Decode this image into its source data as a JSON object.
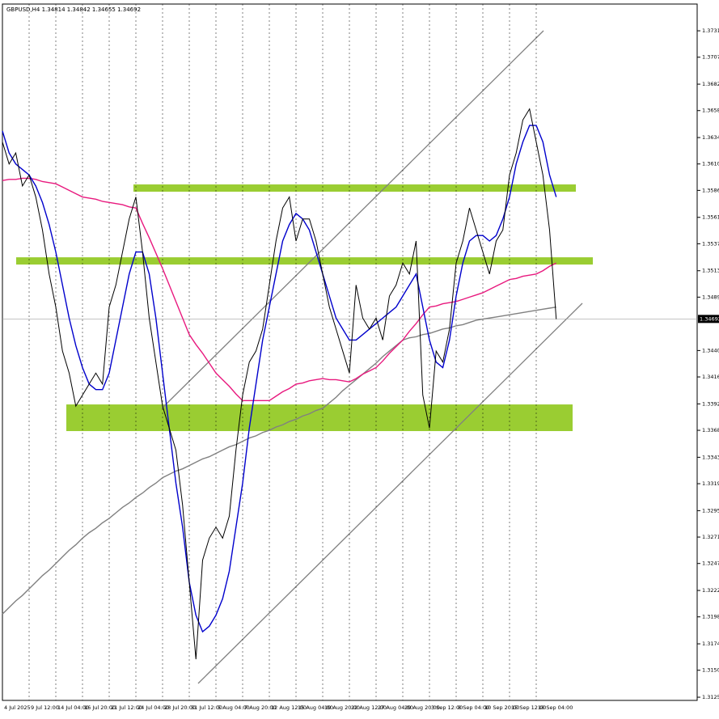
{
  "chart_data": {
    "type": "line",
    "title": "GBPUSD,H4  1.34814 1.34842 1.34655 1.34692",
    "last_price": 1.34692,
    "categories": [
      "4 Jul 2025",
      null,
      null,
      null,
      "9 Jul 12:00",
      null,
      null,
      null,
      "14 Jul 04:00",
      null,
      null,
      null,
      "16 Jul 20:00",
      null,
      null,
      null,
      "21 Jul 12:00",
      null,
      null,
      null,
      "24 Jul 04:00",
      null,
      null,
      null,
      "28 Jul 20:00",
      null,
      null,
      null,
      "31 Jul 12:00",
      null,
      null,
      null,
      "5 Aug 04:00",
      null,
      null,
      null,
      "7 Aug 20:00",
      null,
      null,
      null,
      "12 Aug 12:00",
      null,
      null,
      null,
      "15 Aug 04:00",
      null,
      null,
      null,
      "19 Aug 20:00",
      null,
      null,
      null,
      "22 Aug 12:00",
      null,
      null,
      null,
      "27 Aug 04:00",
      null,
      null,
      null,
      "29 Aug 20:00",
      null,
      null,
      null,
      "3 Sep 12:00",
      null,
      null,
      null,
      "8 Sep 04:00",
      null,
      null,
      null,
      "10 Sep 20:00",
      null,
      null,
      null,
      "15 Sep 12:00",
      null,
      null,
      null,
      "18 Sep 04:00",
      null,
      null,
      null
    ],
    "series": [
      {
        "color": "#000000",
        "values": [
          1.363,
          1.361,
          1.362,
          1.359,
          1.36,
          1.358,
          1.355,
          1.351,
          1.348,
          1.344,
          1.342,
          1.339,
          1.34,
          1.341,
          1.342,
          1.341,
          1.348,
          1.35,
          1.353,
          1.356,
          1.358,
          1.353,
          1.347,
          1.343,
          1.339,
          1.337,
          1.335,
          1.33,
          1.323,
          1.316,
          1.325,
          1.327,
          1.328,
          1.327,
          1.329,
          1.335,
          1.34,
          1.343,
          1.344,
          1.346,
          1.35,
          1.354,
          1.357,
          1.358,
          1.354,
          1.356,
          1.356,
          1.354,
          1.351,
          1.348,
          1.346,
          1.344,
          1.342,
          1.35,
          1.347,
          1.346,
          1.347,
          1.345,
          1.349,
          1.35,
          1.352,
          1.351,
          1.354,
          1.34,
          1.337,
          1.344,
          1.343,
          1.346,
          1.352,
          1.354,
          1.357,
          1.355,
          1.353,
          1.351,
          1.354,
          1.355,
          1.36,
          1.362,
          1.365,
          1.366,
          1.363,
          1.36,
          1.355,
          1.3469
        ]
      },
      {
        "color": "#0000cc",
        "values": [
          1.364,
          1.362,
          1.361,
          1.3605,
          1.36,
          1.359,
          1.3575,
          1.3555,
          1.353,
          1.35,
          1.347,
          1.3445,
          1.3425,
          1.341,
          1.3405,
          1.3405,
          1.342,
          1.345,
          1.348,
          1.351,
          1.353,
          1.353,
          1.351,
          1.347,
          1.342,
          1.337,
          1.332,
          1.328,
          1.323,
          1.32,
          1.3185,
          1.319,
          1.32,
          1.3215,
          1.324,
          1.328,
          1.332,
          1.337,
          1.341,
          1.345,
          1.348,
          1.351,
          1.354,
          1.3555,
          1.3565,
          1.356,
          1.355,
          1.353,
          1.351,
          1.349,
          1.347,
          1.346,
          1.345,
          1.345,
          1.3455,
          1.346,
          1.3465,
          1.347,
          1.3475,
          1.348,
          1.349,
          1.35,
          1.351,
          1.348,
          1.345,
          1.343,
          1.3425,
          1.345,
          1.349,
          1.352,
          1.354,
          1.3545,
          1.3545,
          1.354,
          1.3545,
          1.356,
          1.358,
          1.361,
          1.363,
          1.3645,
          1.3645,
          1.363,
          1.36,
          1.358
        ]
      },
      {
        "color": "#e8197e",
        "values": [
          1.3595,
          1.3596,
          1.3596,
          1.3597,
          1.3597,
          1.3596,
          1.3594,
          1.3593,
          1.3592,
          1.3589,
          1.3586,
          1.3583,
          1.358,
          1.3579,
          1.3578,
          1.3576,
          1.3575,
          1.3574,
          1.3573,
          1.3571,
          1.357,
          1.3556,
          1.3543,
          1.3529,
          1.3515,
          1.35,
          1.3485,
          1.347,
          1.3455,
          1.3446,
          1.3438,
          1.3429,
          1.342,
          1.3414,
          1.3408,
          1.3401,
          1.3395,
          1.3395,
          1.3395,
          1.3395,
          1.3395,
          1.3399,
          1.3403,
          1.3406,
          1.341,
          1.3411,
          1.3413,
          1.3414,
          1.3415,
          1.3414,
          1.3414,
          1.3413,
          1.3412,
          1.3415,
          1.3419,
          1.3422,
          1.3425,
          1.3431,
          1.3438,
          1.3444,
          1.345,
          1.3458,
          1.3465,
          1.3473,
          1.348,
          1.3481,
          1.3483,
          1.3484,
          1.3485,
          1.3487,
          1.3489,
          1.3491,
          1.3493,
          1.3496,
          1.3499,
          1.3502,
          1.3505,
          1.3506,
          1.3508,
          1.3509,
          1.351,
          1.3513,
          1.3517,
          1.352
        ]
      },
      {
        "color": "#808080",
        "values": [
          1.3201,
          1.3207,
          1.3213,
          1.3218,
          1.3224,
          1.323,
          1.3236,
          1.3241,
          1.3247,
          1.3253,
          1.3259,
          1.3264,
          1.327,
          1.3275,
          1.3279,
          1.3284,
          1.3288,
          1.3293,
          1.3298,
          1.3302,
          1.3307,
          1.3311,
          1.3316,
          1.332,
          1.3325,
          1.3328,
          1.3331,
          1.3333,
          1.3336,
          1.3339,
          1.3342,
          1.3344,
          1.3347,
          1.335,
          1.3353,
          1.3355,
          1.3358,
          1.3361,
          1.3363,
          1.3366,
          1.3368,
          1.3371,
          1.3373,
          1.3376,
          1.3378,
          1.3381,
          1.3383,
          1.3386,
          1.3388,
          1.3393,
          1.3398,
          1.3404,
          1.3409,
          1.3414,
          1.3419,
          1.3424,
          1.3429,
          1.3435,
          1.344,
          1.3445,
          1.345,
          1.3452,
          1.3453,
          1.3455,
          1.3456,
          1.3458,
          1.346,
          1.3461,
          1.3463,
          1.3464,
          1.3466,
          1.3468,
          1.3469,
          1.347,
          1.3471,
          1.3472,
          1.3473,
          1.3474,
          1.3475,
          1.3476,
          1.3477,
          1.3478,
          1.3479,
          1.348
        ]
      }
    ],
    "zones": [
      {
        "top": 1.35914,
        "bottom": 1.35848,
        "color": "#9acd32"
      },
      {
        "top": 1.35252,
        "bottom": 1.35186,
        "color": "#9acd32"
      },
      {
        "top": 1.33915,
        "bottom": 1.33673,
        "color": "#9acd32"
      }
    ],
    "ylim": [
      1.31226,
      1.37553
    ],
    "yticks": [
      {
        "value": 1.3731,
        "label": "1.37310"
      },
      {
        "value": 1.3707,
        "label": "1.37070"
      },
      1.36825,
      1.36585,
      {
        "value": 1.3634,
        "label": "1.36340"
      },
      {
        "value": 1.361,
        "label": "1.36100"
      },
      {
        "value": 1.3586,
        "label": "1.35860"
      },
      1.35615,
      1.35375,
      {
        "value": 1.3513,
        "label": "1.35130"
      },
      {
        "value": 1.3489,
        "label": "1.34890"
      },
      1.34405,
      1.34165,
      {
        "value": 1.3392,
        "label": "1.33920"
      },
      {
        "value": 1.3368,
        "label": "1.33680"
      },
      1.33435,
      1.33195,
      {
        "value": 1.3295,
        "label": "1.32950"
      },
      {
        "value": 1.3271,
        "label": "1.32710"
      },
      {
        "value": 1.3247,
        "label": "1.32470"
      },
      1.32225,
      1.31985,
      {
        "value": 1.3174,
        "label": "1.31740"
      },
      {
        "value": 1.315,
        "label": "1.31500"
      },
      1.31255
    ]
  }
}
